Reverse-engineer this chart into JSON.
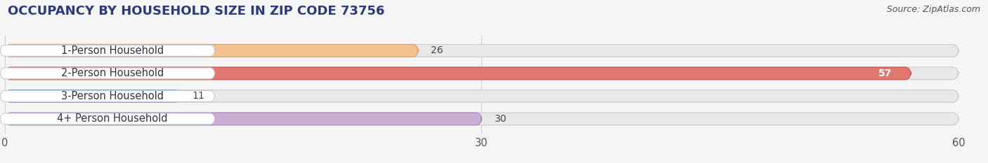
{
  "title": "OCCUPANCY BY HOUSEHOLD SIZE IN ZIP CODE 73756",
  "source": "Source: ZipAtlas.com",
  "categories": [
    "1-Person Household",
    "2-Person Household",
    "3-Person Household",
    "4+ Person Household"
  ],
  "values": [
    26,
    57,
    11,
    30
  ],
  "bar_colors": [
    "#f5c090",
    "#e07870",
    "#aec6e8",
    "#c9aed4"
  ],
  "bar_edge_colors": [
    "#e0a060",
    "#cc5050",
    "#88aacc",
    "#aa88bb"
  ],
  "xlim": [
    0,
    60
  ],
  "xticks": [
    0,
    30,
    60
  ],
  "background_color": "#f5f5f5",
  "bar_bg_color": "#e8e8e8",
  "label_bg_color": "#ffffff",
  "title_fontsize": 13,
  "label_fontsize": 10.5,
  "value_fontsize": 10,
  "source_fontsize": 9,
  "title_color": "#2a3a7a"
}
